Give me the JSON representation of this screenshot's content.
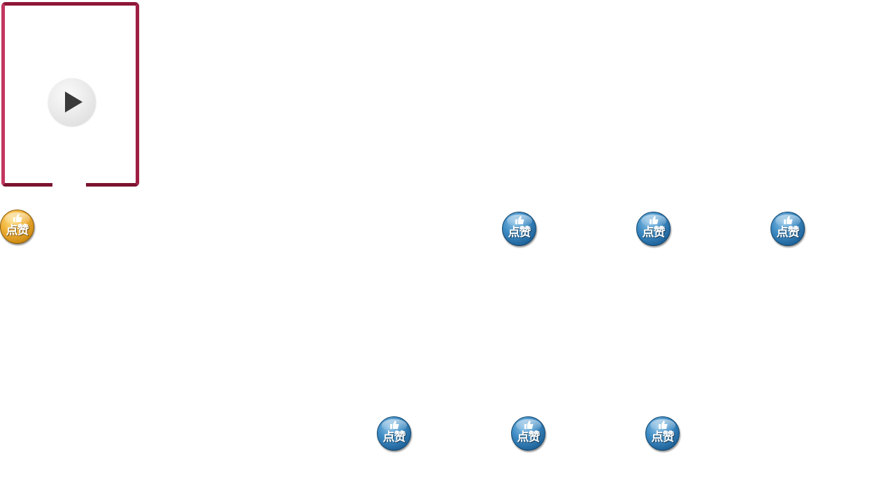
{
  "video": {
    "frame_color": "#b0244a",
    "play_icon": "play-icon"
  },
  "like_buttons": [
    {
      "label": "点赞",
      "style": "gold",
      "state": "active"
    },
    {
      "label": "点赞",
      "style": "blue",
      "state": "inactive"
    },
    {
      "label": "点赞",
      "style": "blue",
      "state": "inactive"
    },
    {
      "label": "点赞",
      "style": "blue",
      "state": "inactive"
    },
    {
      "label": "点赞",
      "style": "blue",
      "state": "inactive"
    },
    {
      "label": "点赞",
      "style": "blue",
      "state": "inactive"
    },
    {
      "label": "点赞",
      "style": "blue",
      "state": "inactive"
    }
  ],
  "colors": {
    "like_blue": "#2a74ad",
    "like_gold": "#e3a227",
    "frame": "#b0244a"
  }
}
